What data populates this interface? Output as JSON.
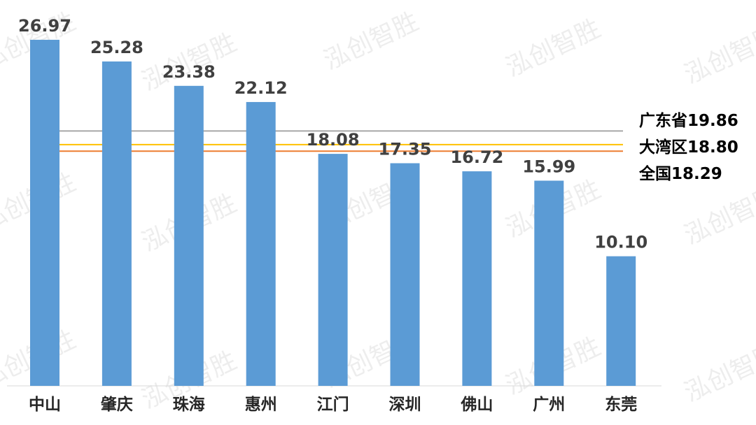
{
  "chart_data": {
    "type": "bar",
    "categories": [
      "中山",
      "肇庆",
      "珠海",
      "惠州",
      "江门",
      "深圳",
      "佛山",
      "广州",
      "东莞"
    ],
    "values": [
      26.97,
      25.28,
      23.38,
      22.12,
      18.08,
      17.35,
      16.72,
      15.99,
      10.1
    ],
    "value_labels": [
      "26.97",
      "25.28",
      "23.38",
      "22.12",
      "18.08",
      "17.35",
      "16.72",
      "15.99",
      "10.10"
    ],
    "bar_color": "#5b9bd5",
    "ylim": [
      0,
      28
    ],
    "grid": false,
    "reference_lines": [
      {
        "label": "广东省19.86",
        "value": 19.86,
        "color": "#a6a6a6"
      },
      {
        "label": "大湾区18.80",
        "value": 18.8,
        "color": "#ffc000"
      },
      {
        "label": "全国18.29",
        "value": 18.29,
        "color": "#ed7d31"
      }
    ]
  },
  "watermark": {
    "text": "泓创智胜"
  }
}
